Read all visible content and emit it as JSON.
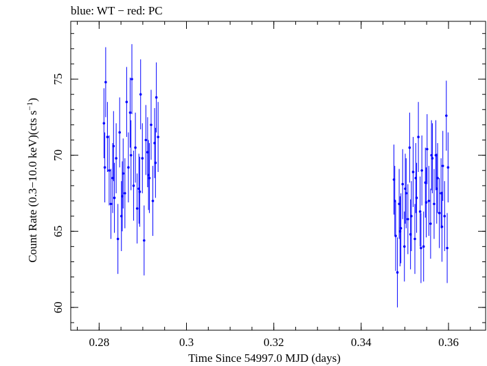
{
  "chart_data": {
    "type": "scatter",
    "title": "blue: WT − red: PC",
    "xlabel": "Time Since 54997.0 MJD (days)",
    "ylabel_main": "Count Rate (0.3−10.0 keV)(cts s",
    "ylabel_sup": "−1",
    "ylabel_close": ")",
    "xlim": [
      0.2735,
      0.3685
    ],
    "ylim": [
      58.5,
      78.8
    ],
    "x_ticks": [
      0.28,
      0.3,
      0.32,
      0.34,
      0.36
    ],
    "x_tick_labels": [
      "0.28",
      "0.3",
      "0.32",
      "0.34",
      "0.36"
    ],
    "y_ticks": [
      60,
      65,
      70,
      75
    ],
    "y_tick_labels": [
      "60",
      "65",
      "70",
      "75"
    ],
    "x_minor_step": 0.005,
    "y_minor_step": 1,
    "grid": false,
    "legend": "none",
    "series": [
      {
        "color": "#0000ff",
        "y_err": 2.3,
        "x": [
          0.2811,
          0.2815,
          0.2819,
          0.2823,
          0.2827,
          0.2831,
          0.2835,
          0.2839,
          0.2843,
          0.2847,
          0.2851,
          0.2855,
          0.2859,
          0.2863,
          0.2867,
          0.2871,
          0.2875,
          0.2879,
          0.2883,
          0.2887,
          0.2891,
          0.2895,
          0.2899,
          0.2903,
          0.2907,
          0.2911,
          0.2915,
          0.2919,
          0.2923,
          0.2927,
          0.2931,
          0.2935,
          0.2813,
          0.2833,
          0.2853,
          0.2873,
          0.2893,
          0.2913,
          0.2929
        ],
        "y": [
          72.1,
          74.8,
          71.2,
          69.0,
          66.8,
          68.5,
          67.2,
          69.8,
          64.5,
          71.5,
          66.0,
          68.8,
          67.5,
          73.5,
          69.2,
          72.8,
          75.0,
          68.0,
          70.5,
          66.5,
          67.8,
          74.0,
          69.8,
          64.4,
          71.0,
          70.2,
          68.5,
          72.0,
          67.0,
          70.8,
          73.8,
          71.2,
          69.2,
          70.6,
          67.3,
          70.0,
          67.6,
          68.7,
          69.5
        ]
      },
      {
        "color": "#0000ff",
        "y_err": 2.3,
        "x": [
          0.3475,
          0.3479,
          0.3483,
          0.3487,
          0.3491,
          0.3495,
          0.3499,
          0.3503,
          0.3507,
          0.3511,
          0.3515,
          0.3519,
          0.3523,
          0.3527,
          0.3531,
          0.3535,
          0.3539,
          0.3543,
          0.3547,
          0.3551,
          0.3555,
          0.3559,
          0.3563,
          0.3567,
          0.3571,
          0.3575,
          0.3579,
          0.3583,
          0.3587,
          0.3591,
          0.3595,
          0.3599,
          0.3477,
          0.3489,
          0.3501,
          0.3513,
          0.3525,
          0.3537,
          0.3549,
          0.3561,
          0.3573,
          0.3585,
          0.3597
        ],
        "y": [
          68.4,
          64.7,
          62.3,
          66.8,
          65.2,
          68.1,
          64.0,
          67.5,
          65.8,
          70.5,
          66.0,
          68.9,
          64.5,
          67.2,
          71.2,
          66.3,
          69.0,
          64.0,
          68.2,
          70.4,
          67.0,
          65.5,
          69.8,
          66.8,
          70.0,
          68.5,
          66.2,
          67.5,
          69.3,
          66.0,
          72.6,
          69.2,
          67.0,
          65.0,
          67.8,
          64.8,
          68.5,
          63.9,
          66.9,
          70.0,
          67.8,
          65.3,
          63.9
        ]
      }
    ]
  }
}
